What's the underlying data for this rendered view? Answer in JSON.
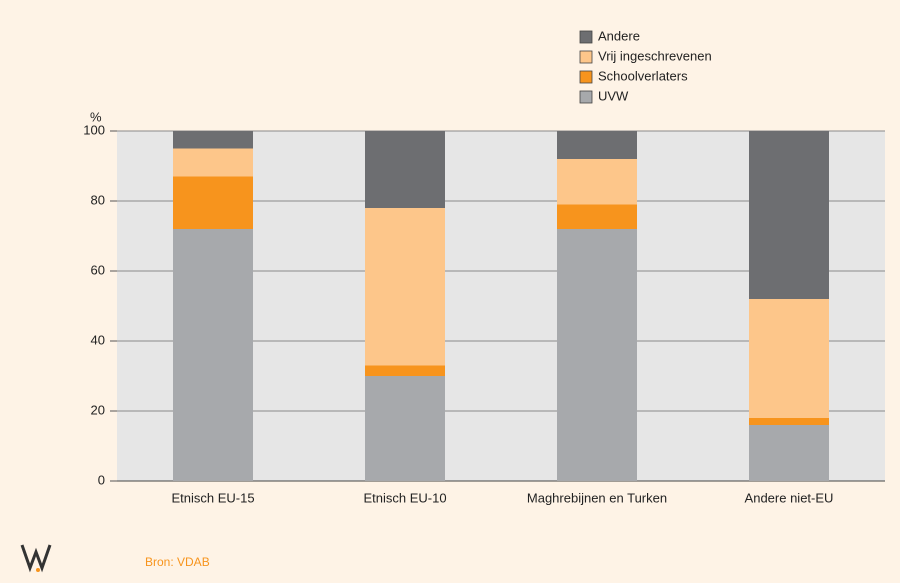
{
  "chart_data": {
    "type": "stacked_bar",
    "y_axis_label": "%",
    "source": "Bron: VDAB",
    "categories": [
      "Etnisch EU-15",
      "Etnisch EU-10",
      "Maghrebijnen en Turken",
      "Andere niet-EU"
    ],
    "series": [
      {
        "name": "UVW",
        "color": "#a7a9ac",
        "values": [
          72,
          30,
          72,
          16
        ]
      },
      {
        "name": "Schoolverlaters",
        "color": "#f7941d",
        "values": [
          15,
          3,
          7,
          2
        ]
      },
      {
        "name": "Vrij ingeschrevenen",
        "color": "#fdc68a",
        "values": [
          8,
          45,
          13,
          34
        ]
      },
      {
        "name": "Andere",
        "color": "#6d6e71",
        "values": [
          5,
          22,
          8,
          48
        ]
      }
    ],
    "ylim": [
      0,
      100
    ],
    "yticks": [
      0,
      20,
      40,
      60,
      80,
      100
    ],
    "grid": true
  }
}
